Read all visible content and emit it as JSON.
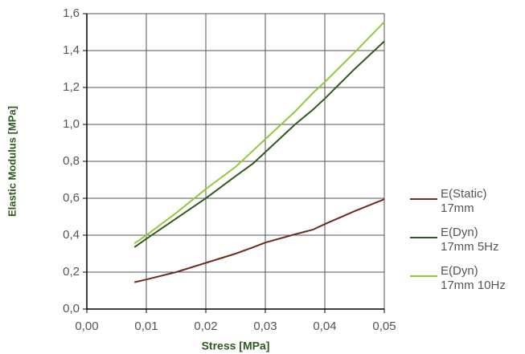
{
  "chart_data": {
    "type": "line",
    "x_label": "Stress [MPa]",
    "y_label": "Elastic Modulus [MPa]",
    "xlim": [
      0,
      0.05
    ],
    "ylim": [
      0,
      1.6
    ],
    "grid": true,
    "xticks": [
      {
        "value": 0,
        "label": "0,00"
      },
      {
        "value": 0.01,
        "label": "0,01"
      },
      {
        "value": 0.02,
        "label": "0,02"
      },
      {
        "value": 0.03,
        "label": "0,03"
      },
      {
        "value": 0.04,
        "label": "0,04"
      },
      {
        "value": 0.05,
        "label": "0,05"
      }
    ],
    "yticks": [
      {
        "value": 0,
        "label": "0,0"
      },
      {
        "value": 0.2,
        "label": "0,2"
      },
      {
        "value": 0.4,
        "label": "0,4"
      },
      {
        "value": 0.6,
        "label": "0,6"
      },
      {
        "value": 0.8,
        "label": "0,8"
      },
      {
        "value": 1,
        "label": "1,0"
      },
      {
        "value": 1.2,
        "label": "1,2"
      },
      {
        "value": 1.4,
        "label": "1,4"
      },
      {
        "value": 1.6,
        "label": "1,6"
      }
    ],
    "x": [
      0.008,
      0.01,
      0.015,
      0.02,
      0.025,
      0.028,
      0.03,
      0.035,
      0.038,
      0.04,
      0.045,
      0.05
    ],
    "series": [
      {
        "name": "E(Static) 17mm",
        "color": "#6b2d1e",
        "values": [
          0.145,
          0.16,
          0.2,
          0.25,
          0.3,
          0.335,
          0.36,
          0.405,
          0.43,
          0.46,
          0.53,
          0.595
        ]
      },
      {
        "name": "E(Dyn) 17mm 5Hz",
        "color": "#2f5a1f",
        "values": [
          0.335,
          0.38,
          0.49,
          0.6,
          0.72,
          0.79,
          0.85,
          1.0,
          1.08,
          1.14,
          1.3,
          1.45
        ]
      },
      {
        "name": "E(Dyn) 17mm 10Hz",
        "color": "#93c83c",
        "values": [
          0.355,
          0.4,
          0.52,
          0.65,
          0.77,
          0.86,
          0.92,
          1.07,
          1.17,
          1.23,
          1.39,
          1.555
        ]
      }
    ]
  }
}
